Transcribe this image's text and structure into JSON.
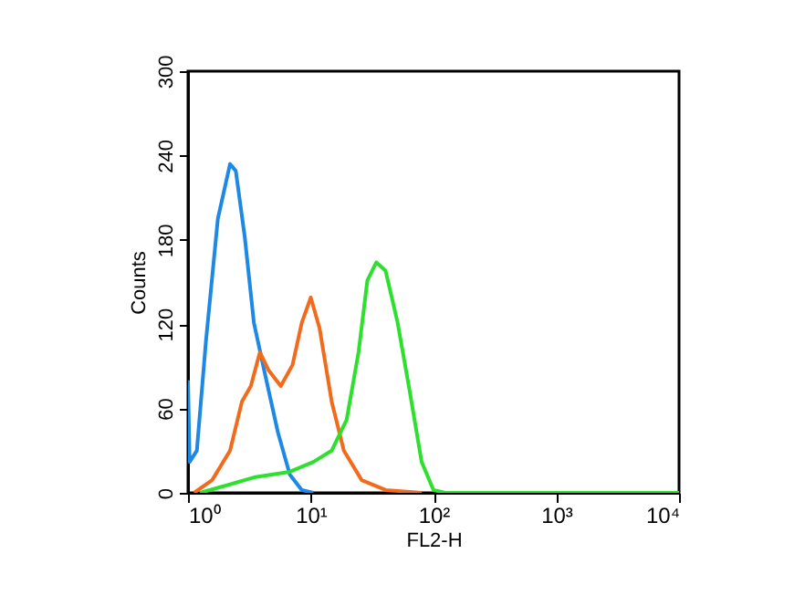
{
  "chart_data": {
    "type": "line",
    "xlabel": "FL2-H",
    "ylabel": "Counts",
    "log": "x",
    "grid": false,
    "marker": "none",
    "xlim": [
      1,
      10000
    ],
    "xticks": [
      {
        "value": 1,
        "label": "10⁰"
      },
      {
        "value": 10,
        "label": "10¹"
      },
      {
        "value": 100,
        "label": "10²"
      },
      {
        "value": 1000,
        "label": "10³"
      },
      {
        "value": 10000,
        "label": "10⁴"
      }
    ],
    "ylim": [
      0,
      300
    ],
    "yticks": [
      0,
      60,
      120,
      180,
      240,
      300
    ],
    "series": [
      {
        "color": "#1e88e5",
        "x": [
          1,
          1.03,
          1.18,
          1.4,
          1.75,
          2.2,
          2.45,
          2.9,
          3.44,
          4.3,
          5.4,
          6.75,
          8.45,
          10.5
        ],
        "values": [
          80,
          22,
          30,
          108,
          195,
          234,
          229,
          182,
          121,
          82,
          43,
          13,
          2,
          0
        ]
      },
      {
        "color": "#f26a1b",
        "x": [
          1.12,
          1.57,
          2.2,
          2.75,
          3.25,
          3.85,
          4.55,
          5.7,
          7.1,
          8.45,
          10,
          11.8,
          14.8,
          18.6,
          26,
          40.7,
          80
        ],
        "values": [
          0,
          9,
          30,
          65,
          76,
          100,
          87,
          76,
          91,
          121,
          139,
          117,
          65,
          30,
          9,
          2,
          0
        ]
      },
      {
        "color": "#2ee02e",
        "x": [
          1.25,
          2.2,
          3.44,
          6.75,
          10.5,
          14.8,
          19.6,
          24.5,
          28.9,
          34.2,
          40.7,
          51,
          63.5,
          80,
          100,
          125,
          10000
        ],
        "values": [
          0,
          6,
          11,
          15,
          22,
          30,
          52,
          100,
          151,
          164,
          158,
          121,
          74,
          22,
          2,
          0,
          0
        ]
      }
    ]
  }
}
